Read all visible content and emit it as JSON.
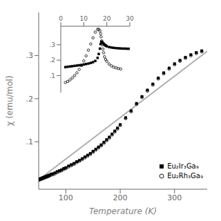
{
  "chart_data": [
    {
      "type": "scatter",
      "xlabel": "Temperature (K)",
      "ylabel": "χ (emu/mol)",
      "xlim": [
        50,
        360
      ],
      "ylim": [
        -0.01,
        0.4
      ],
      "xticks": [
        100,
        200,
        300
      ],
      "yticks": [
        {
          "value": 0.1,
          "label": ".1"
        },
        {
          "value": 0.2,
          "label": ".2"
        },
        {
          "value": 0.3,
          "label": ".3"
        }
      ],
      "grid": false,
      "legend": "lower right",
      "series": [
        {
          "type": "line",
          "color": "#999999",
          "x": [
            50,
            360
          ],
          "values": [
            0.013,
            0.311
          ]
        },
        {
          "type": "line",
          "color": "#999999",
          "x": [
            50,
            360
          ],
          "values": [
            0.011,
            0.309
          ]
        },
        {
          "name": "Eu₂Ir₃Ga₉",
          "type": "scatter",
          "marker": "square",
          "color": "black",
          "x": [
            50,
            52,
            54,
            56,
            58,
            60,
            62,
            64,
            66,
            68,
            70,
            73,
            76,
            80,
            84,
            88,
            92,
            96,
            100,
            105,
            110,
            115,
            120,
            125,
            130,
            135,
            140,
            145,
            150,
            155,
            160,
            165,
            170,
            175,
            180,
            185,
            190,
            195,
            200,
            210,
            220,
            230,
            240,
            250,
            260,
            270,
            280,
            290,
            300,
            310,
            320,
            330,
            340,
            350
          ],
          "values": [
            0.013,
            0.014,
            0.015,
            0.016,
            0.017,
            0.018,
            0.019,
            0.02,
            0.021,
            0.022,
            0.023,
            0.025,
            0.026,
            0.028,
            0.031,
            0.033,
            0.035,
            0.038,
            0.04,
            0.044,
            0.047,
            0.05,
            0.054,
            0.057,
            0.061,
            0.065,
            0.069,
            0.073,
            0.078,
            0.083,
            0.088,
            0.093,
            0.099,
            0.105,
            0.111,
            0.118,
            0.125,
            0.132,
            0.14,
            0.156,
            0.172,
            0.189,
            0.205,
            0.22,
            0.234,
            0.248,
            0.26,
            0.271,
            0.281,
            0.289,
            0.296,
            0.302,
            0.307,
            0.311
          ]
        },
        {
          "name": "Eu₂Rh₃Ga₉",
          "type": "scatter",
          "marker": "open_circle",
          "color": "black",
          "x": [
            50,
            52,
            54,
            56,
            58,
            60,
            62,
            64,
            66,
            68,
            70,
            73,
            76,
            80,
            84,
            88,
            92,
            96,
            100,
            105,
            110,
            115,
            120,
            125,
            130,
            135,
            140,
            145,
            150,
            155,
            160,
            165,
            170,
            175,
            180,
            185,
            190,
            195,
            200,
            210,
            220,
            230,
            240,
            250,
            260,
            270,
            280,
            290,
            300,
            310,
            320,
            330,
            340,
            350
          ],
          "values": [
            0.011,
            0.012,
            0.013,
            0.014,
            0.015,
            0.016,
            0.017,
            0.018,
            0.019,
            0.02,
            0.021,
            0.023,
            0.024,
            0.026,
            0.029,
            0.031,
            0.033,
            0.036,
            0.038,
            0.042,
            0.045,
            0.048,
            0.052,
            0.055,
            0.059,
            0.063,
            0.067,
            0.071,
            0.076,
            0.081,
            0.086,
            0.091,
            0.097,
            0.103,
            0.109,
            0.116,
            0.123,
            0.13,
            0.138,
            0.154,
            0.17,
            0.187,
            0.203,
            0.218,
            0.232,
            0.246,
            0.258,
            0.269,
            0.279,
            0.287,
            0.294,
            0.3,
            0.305,
            0.309
          ]
        }
      ]
    },
    {
      "type": "scatter",
      "xlim": [
        0,
        30
      ],
      "ylim": [
        -0.01,
        0.42
      ],
      "xticks": [
        0,
        10,
        20,
        30
      ],
      "yticks": [
        {
          "value": 0.1,
          "label": ".1"
        },
        {
          "value": 0.2,
          "label": ".2"
        },
        {
          "value": 0.3,
          "label": ".3"
        }
      ],
      "grid": false,
      "series": [
        {
          "type": "scatter",
          "marker": "square",
          "color": "black",
          "x": [
            2,
            3,
            4,
            5,
            6,
            7,
            8,
            9,
            10,
            11,
            12,
            13,
            14,
            15,
            16,
            16.5,
            17,
            17.3,
            17.6,
            17.9,
            18.2,
            18.5,
            18.8,
            19.0,
            19.3,
            19.6,
            20,
            21,
            22,
            23,
            24,
            25,
            26,
            27,
            28,
            29,
            30
          ],
          "values": [
            0.155,
            0.157,
            0.159,
            0.161,
            0.163,
            0.165,
            0.167,
            0.169,
            0.172,
            0.175,
            0.178,
            0.182,
            0.187,
            0.195,
            0.215,
            0.24,
            0.275,
            0.305,
            0.32,
            0.318,
            0.312,
            0.308,
            0.303,
            0.3,
            0.297,
            0.294,
            0.29,
            0.285,
            0.282,
            0.28,
            0.278,
            0.277,
            0.276,
            0.275,
            0.275,
            0.274,
            0.274
          ]
        },
        {
          "type": "scatter",
          "marker": "open_circle",
          "color": "black",
          "x": [
            2,
            3,
            4,
            5,
            6,
            7,
            8,
            9,
            10,
            11,
            12,
            13,
            14,
            15,
            16,
            16.5,
            17,
            17.3,
            17.5,
            17.8,
            18,
            18.3,
            18.6,
            19,
            19.5,
            20,
            21,
            22,
            23,
            24,
            25,
            26
          ],
          "values": [
            0.055,
            0.062,
            0.072,
            0.085,
            0.1,
            0.118,
            0.14,
            0.165,
            0.195,
            0.228,
            0.265,
            0.305,
            0.345,
            0.382,
            0.4,
            0.4,
            0.39,
            0.372,
            0.352,
            0.325,
            0.3,
            0.272,
            0.248,
            0.222,
            0.205,
            0.192,
            0.175,
            0.163,
            0.155,
            0.15,
            0.146,
            0.143
          ]
        }
      ]
    }
  ]
}
